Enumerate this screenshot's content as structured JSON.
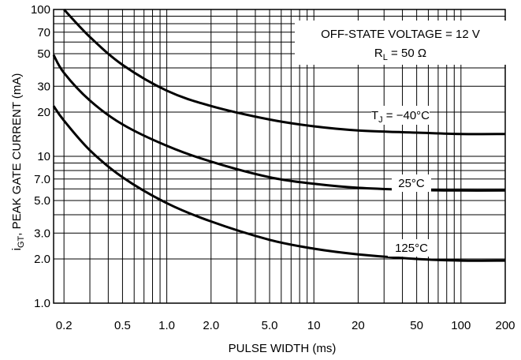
{
  "chart_data": {
    "type": "line",
    "title": "",
    "xlabel": "PULSE WIDTH (ms)",
    "ylabel": "i",
    "ylabel_sub": "GT",
    "ylabel_rest": ", PEAK GATE CURRENT (mA)",
    "x_scale": "log",
    "y_scale": "log",
    "xlim": [
      0.17,
      200
    ],
    "ylim": [
      1.0,
      100
    ],
    "grid": true,
    "legend": "none",
    "x_tick_labels": [
      {
        "v": 0.2,
        "t": "0.2"
      },
      {
        "v": 0.5,
        "t": "0.5"
      },
      {
        "v": 1.0,
        "t": "1.0"
      },
      {
        "v": 2.0,
        "t": "2.0"
      },
      {
        "v": 5.0,
        "t": "5.0"
      },
      {
        "v": 10,
        "t": "10"
      },
      {
        "v": 20,
        "t": "20"
      },
      {
        "v": 50,
        "t": "50"
      },
      {
        "v": 100,
        "t": "100"
      },
      {
        "v": 200,
        "t": "200"
      }
    ],
    "y_tick_labels": [
      {
        "v": 1.0,
        "t": "1.0"
      },
      {
        "v": 2.0,
        "t": "2.0"
      },
      {
        "v": 3.0,
        "t": "3.0"
      },
      {
        "v": 5.0,
        "t": "5.0"
      },
      {
        "v": 7.0,
        "t": "7.0"
      },
      {
        "v": 10,
        "t": "10"
      },
      {
        "v": 20,
        "t": "20"
      },
      {
        "v": 30,
        "t": "30"
      },
      {
        "v": 50,
        "t": "50"
      },
      {
        "v": 70,
        "t": "70"
      },
      {
        "v": 100,
        "t": "100"
      }
    ],
    "series": [
      {
        "name": "T",
        "name_sub": "J",
        "name_rest": " = −40°C",
        "points": [
          [
            0.2,
            100
          ],
          [
            0.3,
            65
          ],
          [
            0.5,
            42
          ],
          [
            1.0,
            28
          ],
          [
            2.0,
            22
          ],
          [
            5.0,
            17.8
          ],
          [
            10,
            16
          ],
          [
            20,
            15
          ],
          [
            50,
            14.5
          ],
          [
            100,
            14.2
          ],
          [
            200,
            14.2
          ]
        ]
      },
      {
        "name": "25°C",
        "points": [
          [
            0.17,
            49
          ],
          [
            0.2,
            37
          ],
          [
            0.3,
            24
          ],
          [
            0.5,
            16.5
          ],
          [
            1.0,
            11.8
          ],
          [
            2.0,
            9.2
          ],
          [
            5.0,
            7.2
          ],
          [
            10,
            6.5
          ],
          [
            20,
            6.1
          ],
          [
            50,
            5.9
          ],
          [
            100,
            5.85
          ],
          [
            200,
            5.85
          ]
        ]
      },
      {
        "name": "125°C",
        "points": [
          [
            0.17,
            22
          ],
          [
            0.2,
            17.5
          ],
          [
            0.3,
            11
          ],
          [
            0.5,
            7.2
          ],
          [
            1.0,
            4.8
          ],
          [
            2.0,
            3.6
          ],
          [
            5.0,
            2.7
          ],
          [
            10,
            2.35
          ],
          [
            20,
            2.15
          ],
          [
            50,
            2.0
          ],
          [
            100,
            1.95
          ],
          [
            200,
            1.95
          ]
        ]
      }
    ],
    "annotation": {
      "line1": "OFF-STATE VOLTAGE = 12 V",
      "line2_main": "R",
      "line2_sub": "L",
      "line2_rest": " = 50 Ω"
    }
  }
}
